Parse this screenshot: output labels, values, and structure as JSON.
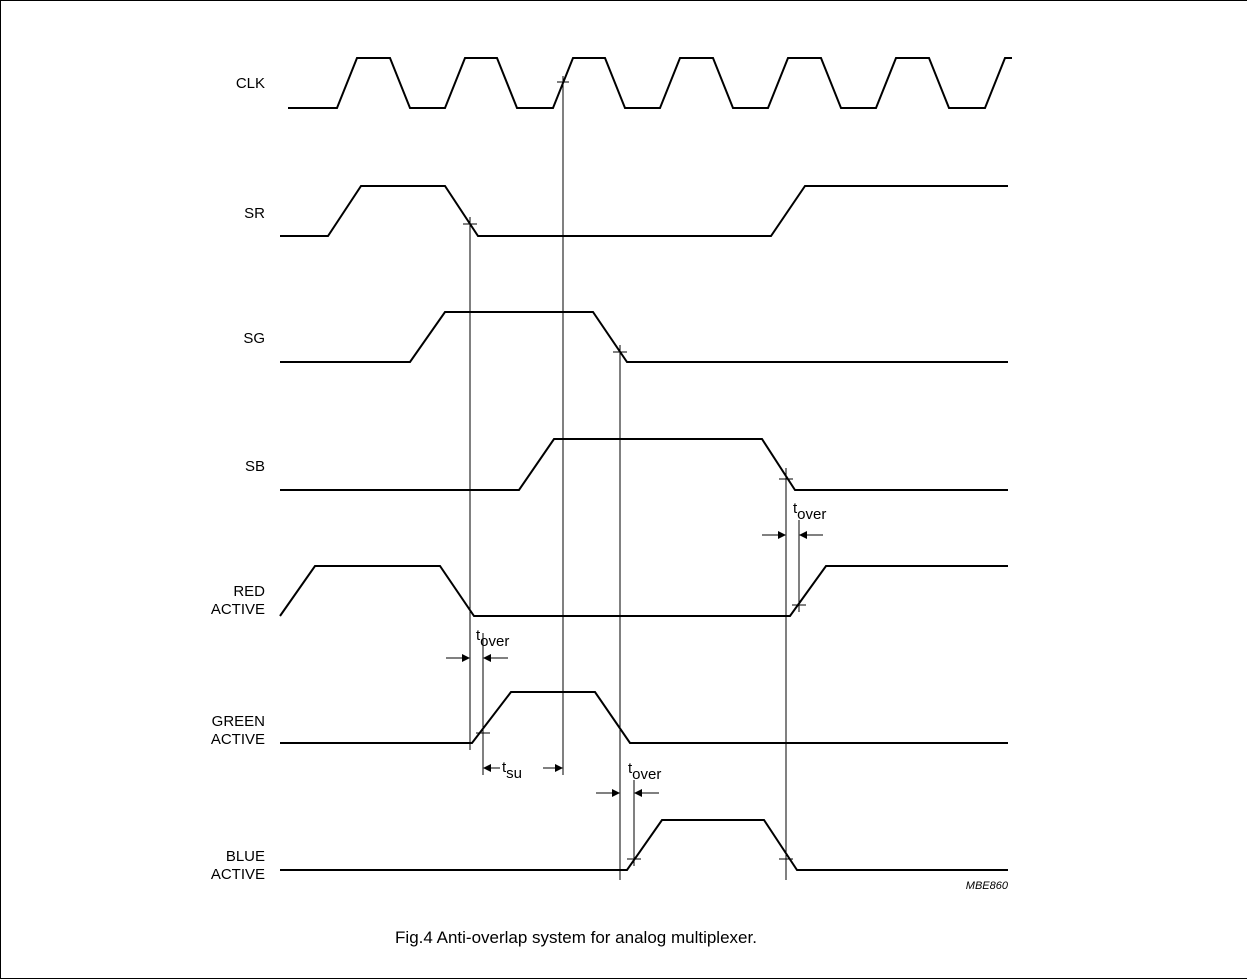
{
  "signals": [
    {
      "label": "CLK",
      "label2": ""
    },
    {
      "label": "SR",
      "label2": ""
    },
    {
      "label": "SG",
      "label2": ""
    },
    {
      "label": "SB",
      "label2": ""
    },
    {
      "label": "RED",
      "label2": "ACTIVE"
    },
    {
      "label": "GREEN",
      "label2": "ACTIVE"
    },
    {
      "label": "BLUE",
      "label2": "ACTIVE"
    }
  ],
  "annotations": {
    "tover_main": "t",
    "tover_sub": "over",
    "tsu_main": "t",
    "tsu_sub": "su"
  },
  "figure_code": "MBE860",
  "caption": "Fig.4  Anti-overlap system for analog multiplexer."
}
